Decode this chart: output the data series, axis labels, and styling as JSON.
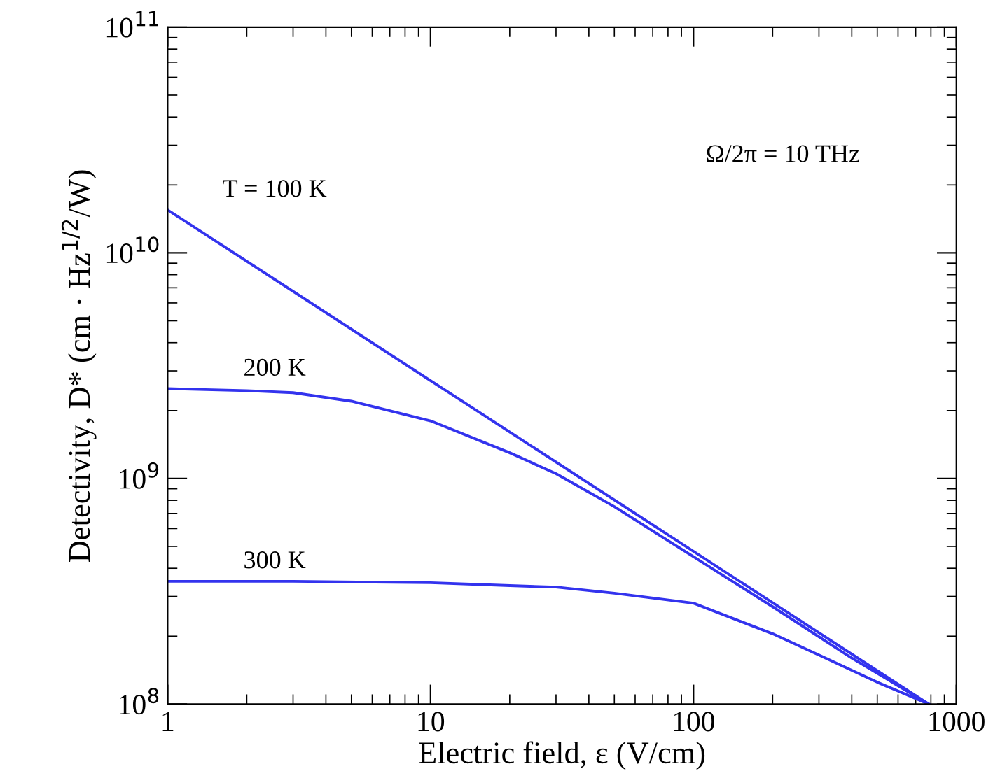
{
  "chart_data": {
    "type": "line",
    "xlabel": "Electric field, ε (V/cm)",
    "ylabel": "Detectivity, D* (cm · Hz$^{1/2}$/W)",
    "log": "xy",
    "grid": false,
    "legend": false,
    "marker": "none",
    "line_style": "solid",
    "xlim": [
      1,
      1000
    ],
    "xticks": [
      1,
      10,
      100,
      1000
    ],
    "ylim": [
      100000000.0,
      100000000000.0
    ],
    "yticks": [
      {
        "value": 100000000.0,
        "label": "10$^{8}$"
      },
      {
        "value": 1000000000.0,
        "label": "10$^{9}$"
      },
      {
        "value": 10000000000.0,
        "label": "10$^{10}$"
      },
      {
        "value": 100000000000.0,
        "label": "10$^{11}$"
      }
    ],
    "series": [
      {
        "name": "T = 100 K",
        "color": "#3333ee",
        "x": [
          1,
          785
        ],
        "values": [
          15500000000.0,
          100000000.0
        ]
      },
      {
        "name": "200 K",
        "color": "#3333ee",
        "x": [
          1,
          2,
          3,
          5,
          10,
          20,
          30,
          50,
          100,
          200,
          400,
          785
        ],
        "values": [
          2500000000.0,
          2450000000.0,
          2400000000.0,
          2200000000.0,
          1800000000.0,
          1300000000.0,
          1050000000.0,
          750000000.0,
          450000000.0,
          270000000.0,
          160000000.0,
          100000000.0
        ]
      },
      {
        "name": "300 K",
        "color": "#3333ee",
        "x": [
          1,
          3,
          10,
          20,
          30,
          50,
          100,
          200,
          300,
          500,
          785
        ],
        "values": [
          350000000.0,
          350000000.0,
          345000000.0,
          335000000.0,
          330000000.0,
          310000000.0,
          280000000.0,
          205000000.0,
          165000000.0,
          125000000.0,
          100000000.0
        ]
      }
    ],
    "annotations": [
      "Ω/2π = 10 THz"
    ]
  }
}
